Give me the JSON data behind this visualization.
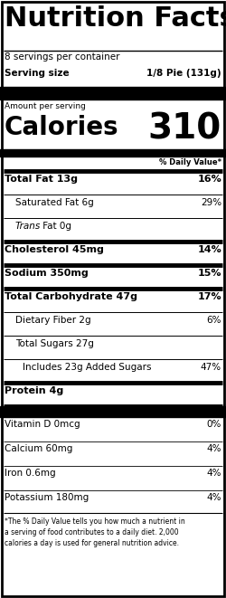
{
  "title": "Nutrition Facts",
  "servings_per_container": "8 servings per container",
  "serving_size_label": "Serving size",
  "serving_size_value": "1/8 Pie (131g)",
  "amount_per_serving": "Amount per serving",
  "calories_label": "Calories",
  "calories_value": "310",
  "daily_value_header": "% Daily Value*",
  "rows": [
    {
      "label": "Total Fat 13g",
      "value": "16%",
      "bold": true,
      "indent": 0
    },
    {
      "label": "Saturated Fat 6g",
      "value": "29%",
      "bold": false,
      "indent": 1
    },
    {
      "label_italic": "Trans",
      "label_normal": " Fat 0g",
      "value": "",
      "bold": false,
      "indent": 1
    },
    {
      "label": "Cholesterol 45mg",
      "value": "14%",
      "bold": true,
      "indent": 0
    },
    {
      "label": "Sodium 350mg",
      "value": "15%",
      "bold": true,
      "indent": 0
    },
    {
      "label": "Total Carbohydrate 47g",
      "value": "17%",
      "bold": true,
      "indent": 0
    },
    {
      "label": "Dietary Fiber 2g",
      "value": "6%",
      "bold": false,
      "indent": 1
    },
    {
      "label": "Total Sugars 27g",
      "value": "",
      "bold": false,
      "indent": 1
    },
    {
      "label": "Includes 23g Added Sugars",
      "value": "47%",
      "bold": false,
      "indent": 2
    },
    {
      "label": "Protein 4g",
      "value": "",
      "bold": true,
      "indent": 0
    }
  ],
  "vitamin_rows": [
    {
      "label": "Vitamin D 0mcg",
      "value": "0%"
    },
    {
      "label": "Calcium 60mg",
      "value": "4%"
    },
    {
      "label": "Iron 0.6mg",
      "value": "4%"
    },
    {
      "label": "Potassium 180mg",
      "value": "4%"
    }
  ],
  "footnote": "*The % Daily Value tells you how much a nutrient in a serving of food contributes to a daily diet. 2,000 calories a day is used for general nutrition advice.",
  "bg_color": "#ffffff",
  "text_color": "#000000"
}
